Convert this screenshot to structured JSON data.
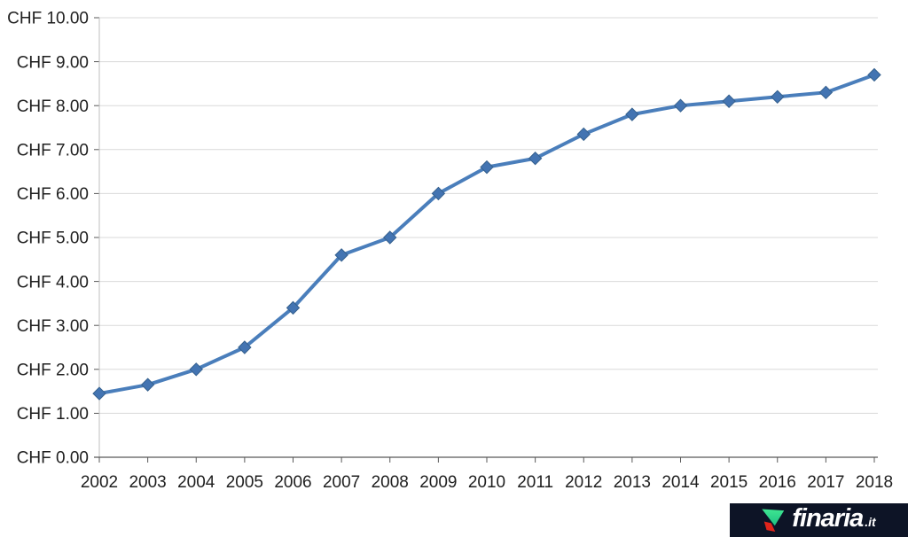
{
  "chart_data": {
    "type": "line",
    "title": "",
    "categories": [
      "2002",
      "2003",
      "2004",
      "2005",
      "2006",
      "2007",
      "2008",
      "2009",
      "2010",
      "2011",
      "2012",
      "2013",
      "2014",
      "2015",
      "2016",
      "2017",
      "2018"
    ],
    "series": [
      {
        "values": [
          1.45,
          1.65,
          2.0,
          2.5,
          3.4,
          4.6,
          5.0,
          6.0,
          6.6,
          6.8,
          7.35,
          7.8,
          8.0,
          8.1,
          8.2,
          8.3,
          8.7
        ]
      }
    ],
    "ylim": [
      0,
      10
    ],
    "y_tick_step": 1,
    "y_tick_labels": [
      "CHF 0.00",
      "CHF 1.00",
      "CHF 2.00",
      "CHF 3.00",
      "CHF 4.00",
      "CHF 5.00",
      "CHF 6.00",
      "CHF 7.00",
      "CHF 8.00",
      "CHF 9.00",
      "CHF 10.00"
    ],
    "grid": true,
    "legend_position": "none",
    "marker": "diamond",
    "colors": {
      "line": "#4a7ebb",
      "marker_fill": "#4374b2",
      "marker_edge": "#35608d",
      "gridline": "#d9d9d9",
      "vertical_axis": "#bfbfbf",
      "axis": "#595959",
      "tick_label": "#1f1f1f"
    }
  },
  "branding": {
    "name": "finaria",
    "tld": ".it",
    "colors": {
      "background": "#0d1426",
      "green_top": "#3fe792",
      "green_bottom": "#14b37d",
      "red": "#e0241b",
      "text": "#ffffff"
    }
  }
}
